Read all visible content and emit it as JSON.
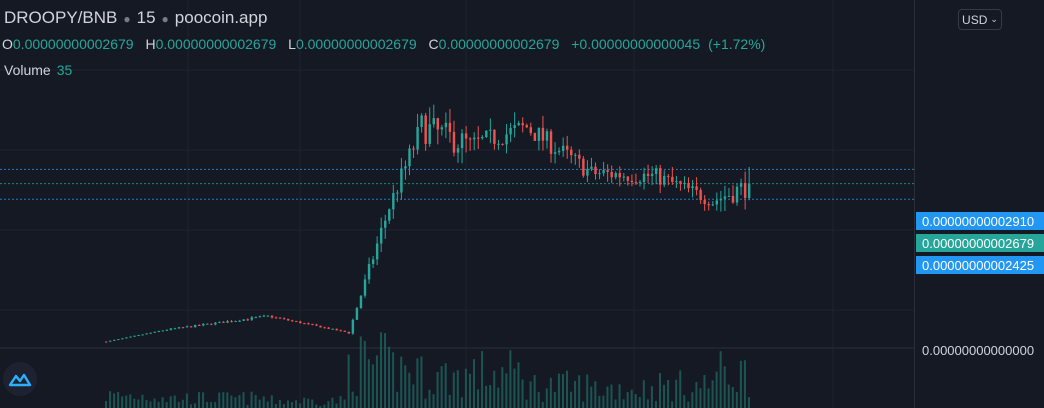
{
  "header": {
    "symbol": "DROOPY/BNB",
    "interval": "15",
    "source": "poocoin.app"
  },
  "ohlc": {
    "o_label": "O",
    "o": "0.00000000002679",
    "h_label": "H",
    "h": "0.00000000002679",
    "l_label": "L",
    "l": "0.00000000002679",
    "c_label": "C",
    "c": "0.00000000002679",
    "change": "+0.00000000000045",
    "change_pct": "(+1.72%)"
  },
  "volume": {
    "label": "Volume",
    "value": "35"
  },
  "currency": {
    "label": "USD"
  },
  "price_tags": {
    "upper": "0.00000000002910",
    "current": "0.00000000002679",
    "lower": "0.00000000002425"
  },
  "axis": {
    "zero_label": "0.00000000000000"
  },
  "colors": {
    "background": "#151924",
    "up": "#26a69a",
    "down": "#ef5350",
    "volume": "#1d5f5a",
    "tag_blue": "#2196f3",
    "tag_green": "#26a69a"
  },
  "icons": {
    "logo": "poocoin-logo-icon",
    "chevron": "chevron-down-icon"
  },
  "chart_data": {
    "type": "candlestick",
    "title": "DROOPY/BNB · 15 · poocoin.app",
    "ylim_price": [
      0.0,
      4.4e-11
    ],
    "y_tick_labels": [
      "0.00000000000000"
    ],
    "horizontal_lines": [
      2.91e-11,
      2.679e-11,
      2.425e-11
    ],
    "grid": true,
    "candle_count": 160,
    "segments": [
      {
        "from": 0,
        "to": 15,
        "start": 1.05e-12,
        "end": 3e-12,
        "noise": 0.02,
        "vol": 0.25
      },
      {
        "from": 15,
        "to": 40,
        "start": 3e-12,
        "end": 5.2e-12,
        "noise": 0.04,
        "vol": 0.2
      },
      {
        "from": 40,
        "to": 60,
        "start": 5.2e-12,
        "end": 2.5e-12,
        "noise": 0.03,
        "vol": 0.15
      },
      {
        "from": 60,
        "to": 70,
        "start": 2.5e-12,
        "end": 2.3e-11,
        "noise": 0.08,
        "vol": 0.9
      },
      {
        "from": 70,
        "to": 78,
        "start": 2.3e-11,
        "end": 3.6e-11,
        "noise": 0.06,
        "vol": 0.8
      },
      {
        "from": 78,
        "to": 90,
        "start": 3.6e-11,
        "end": 3.3e-11,
        "noise": 0.07,
        "vol": 0.65
      },
      {
        "from": 90,
        "to": 104,
        "start": 3.3e-11,
        "end": 3.6e-11,
        "noise": 0.05,
        "vol": 0.7
      },
      {
        "from": 104,
        "to": 120,
        "start": 3.6e-11,
        "end": 2.85e-11,
        "noise": 0.05,
        "vol": 0.45
      },
      {
        "from": 120,
        "to": 136,
        "start": 2.85e-11,
        "end": 2.8e-11,
        "noise": 0.05,
        "vol": 0.4
      },
      {
        "from": 136,
        "to": 150,
        "start": 2.8e-11,
        "end": 2.4e-11,
        "noise": 0.05,
        "vol": 0.45
      },
      {
        "from": 150,
        "to": 160,
        "start": 2.4e-11,
        "end": 2.679e-11,
        "noise": 0.07,
        "vol": 0.7
      }
    ]
  }
}
